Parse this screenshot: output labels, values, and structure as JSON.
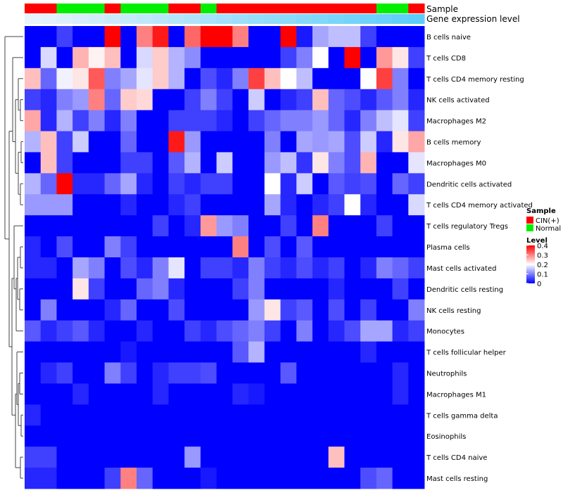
{
  "chart_data": {
    "type": "heatmap",
    "annotations": {
      "sample_label": "Sample",
      "expression_label": "Gene expression level",
      "sample_groups": [
        "CIN(+)",
        "Normal",
        "CIN(+)",
        "Normal",
        "CIN(+)",
        "Normal",
        "CIN(+)",
        "Normal",
        "CIN(+)"
      ],
      "sample_group_lengths": [
        2,
        3,
        1,
        3,
        2,
        1,
        10,
        2,
        1
      ],
      "sample_colors": {
        "CIN(+)": "#ff0000",
        "Normal": "#00ee00"
      }
    },
    "rows": [
      "B cells naive",
      "T cells CD8",
      "T cells CD4 memory resting",
      "NK cells activated",
      "Macrophages M2",
      "B cells memory",
      "Macrophages M0",
      "Dendritic cells activated",
      "T cells CD4 memory activated",
      "T cells regulatory  Tregs",
      "Plasma cells",
      "Mast cells activated",
      "Dendritic cells resting",
      "NK cells resting",
      "Monocytes",
      "T cells follicular helper",
      "Neutrophils",
      "Macrophages M1",
      "T cells gamma delta",
      "Eosinophils",
      "T cells CD4 naive",
      "Mast cells resting"
    ],
    "values": [
      [
        0.0,
        0.0,
        0.05,
        0.0,
        0.0,
        0.4,
        0.0,
        0.3,
        0.38,
        0.0,
        0.32,
        0.4,
        0.4,
        0.3,
        0.0,
        0.0,
        0.4,
        0.02,
        0.13,
        0.15,
        0.15,
        0.05,
        0.0,
        0.0,
        0.0
      ],
      [
        0.0,
        0.17,
        0.0,
        0.26,
        0.21,
        0.25,
        0.0,
        0.17,
        0.24,
        0.14,
        0.11,
        0.0,
        0.0,
        0.0,
        0.0,
        0.0,
        0.05,
        0.1,
        0.2,
        0.0,
        0.4,
        0.0,
        0.28,
        0.22,
        0.05
      ],
      [
        0.25,
        0.08,
        0.19,
        0.22,
        0.33,
        0.1,
        0.13,
        0.18,
        0.24,
        0.14,
        0.0,
        0.06,
        0.03,
        0.1,
        0.35,
        0.25,
        0.2,
        0.15,
        0.0,
        0.0,
        0.0,
        0.2,
        0.35,
        0.1,
        0.0
      ],
      [
        0.05,
        0.03,
        0.1,
        0.12,
        0.3,
        0.08,
        0.24,
        0.23,
        0.0,
        0.0,
        0.05,
        0.1,
        0.05,
        0.0,
        0.16,
        0.0,
        0.03,
        0.05,
        0.25,
        0.08,
        0.06,
        0.03,
        0.07,
        0.1,
        0.03
      ],
      [
        0.27,
        0.03,
        0.14,
        0.05,
        0.1,
        0.03,
        0.1,
        0.0,
        0.0,
        0.05,
        0.05,
        0.05,
        0.03,
        0.0,
        0.05,
        0.08,
        0.1,
        0.1,
        0.12,
        0.08,
        0.03,
        0.1,
        0.15,
        0.18,
        0.05
      ],
      [
        0.14,
        0.25,
        0.05,
        0.16,
        0.0,
        0.0,
        0.08,
        0.0,
        0.0,
        0.38,
        0.12,
        0.0,
        0.0,
        0.0,
        0.0,
        0.1,
        0.0,
        0.13,
        0.12,
        0.13,
        0.06,
        0.16,
        0.03,
        0.22,
        0.27
      ],
      [
        0.0,
        0.25,
        0.05,
        0.0,
        0.0,
        0.0,
        0.05,
        0.05,
        0.0,
        0.07,
        0.14,
        0.0,
        0.16,
        0.0,
        0.0,
        0.12,
        0.15,
        0.04,
        0.22,
        0.1,
        0.06,
        0.26,
        0.0,
        0.0,
        0.18
      ],
      [
        0.14,
        0.08,
        0.4,
        0.03,
        0.03,
        0.08,
        0.13,
        0.03,
        0.0,
        0.05,
        0.03,
        0.05,
        0.05,
        0.0,
        0.0,
        0.2,
        0.03,
        0.16,
        0.0,
        0.07,
        0.05,
        0.06,
        0.0,
        0.08,
        0.05
      ],
      [
        0.12,
        0.12,
        0.12,
        0.0,
        0.0,
        0.0,
        0.03,
        0.0,
        0.0,
        0.03,
        0.05,
        0.0,
        0.0,
        0.0,
        0.0,
        0.13,
        0.03,
        0.0,
        0.03,
        0.05,
        0.2,
        0.03,
        0.0,
        0.0,
        0.17
      ],
      [
        0.0,
        0.0,
        0.0,
        0.0,
        0.0,
        0.0,
        0.0,
        0.0,
        0.05,
        0.0,
        0.03,
        0.28,
        0.12,
        0.1,
        0.0,
        0.0,
        0.05,
        0.0,
        0.3,
        0.0,
        0.0,
        0.0,
        0.05,
        0.0,
        0.0
      ],
      [
        0.03,
        0.0,
        0.06,
        0.0,
        0.0,
        0.1,
        0.05,
        0.0,
        0.0,
        0.0,
        0.0,
        0.0,
        0.0,
        0.3,
        0.0,
        0.06,
        0.0,
        0.07,
        0.0,
        0.0,
        0.0,
        0.0,
        0.0,
        0.0,
        0.0
      ],
      [
        0.03,
        0.03,
        0.0,
        0.13,
        0.1,
        0.0,
        0.06,
        0.03,
        0.1,
        0.18,
        0.0,
        0.05,
        0.05,
        0.03,
        0.1,
        0.05,
        0.03,
        0.06,
        0.03,
        0.05,
        0.0,
        0.03,
        0.1,
        0.08,
        0.05
      ],
      [
        0.0,
        0.0,
        0.0,
        0.22,
        0.05,
        0.0,
        0.0,
        0.08,
        0.1,
        0.03,
        0.0,
        0.0,
        0.0,
        0.05,
        0.1,
        0.0,
        0.0,
        0.0,
        0.0,
        0.03,
        0.0,
        0.0,
        0.0,
        0.05,
        0.0
      ],
      [
        0.0,
        0.1,
        0.0,
        0.0,
        0.0,
        0.03,
        0.08,
        0.0,
        0.0,
        0.06,
        0.0,
        0.0,
        0.0,
        0.0,
        0.12,
        0.22,
        0.05,
        0.07,
        0.0,
        0.06,
        0.0,
        0.05,
        0.0,
        0.0,
        0.1
      ],
      [
        0.07,
        0.03,
        0.05,
        0.07,
        0.03,
        0.0,
        0.0,
        0.03,
        0.0,
        0.0,
        0.05,
        0.03,
        0.06,
        0.08,
        0.1,
        0.05,
        0.0,
        0.1,
        0.0,
        0.03,
        0.06,
        0.13,
        0.13,
        0.03,
        0.05
      ],
      [
        0.0,
        0.0,
        0.0,
        0.0,
        0.0,
        0.0,
        0.02,
        0.0,
        0.0,
        0.0,
        0.0,
        0.0,
        0.0,
        0.07,
        0.14,
        0.0,
        0.0,
        0.0,
        0.0,
        0.0,
        0.0,
        0.03,
        0.0,
        0.0,
        0.0
      ],
      [
        0.0,
        0.03,
        0.05,
        0.0,
        0.0,
        0.1,
        0.05,
        0.0,
        0.03,
        0.05,
        0.05,
        0.06,
        0.0,
        0.0,
        0.0,
        0.0,
        0.07,
        0.0,
        0.0,
        0.0,
        0.0,
        0.0,
        0.0,
        0.03,
        0.0
      ],
      [
        0.0,
        0.0,
        0.0,
        0.03,
        0.0,
        0.0,
        0.0,
        0.0,
        0.03,
        0.0,
        0.0,
        0.0,
        0.0,
        0.03,
        0.02,
        0.0,
        0.0,
        0.0,
        0.0,
        0.0,
        0.0,
        0.0,
        0.0,
        0.03,
        0.0
      ],
      [
        0.03,
        0.0,
        0.0,
        0.0,
        0.0,
        0.0,
        0.0,
        0.0,
        0.0,
        0.0,
        0.0,
        0.0,
        0.0,
        0.0,
        0.0,
        0.0,
        0.0,
        0.0,
        0.0,
        0.0,
        0.0,
        0.0,
        0.0,
        0.0,
        0.0
      ],
      [
        0.0,
        0.0,
        0.0,
        0.0,
        0.0,
        0.0,
        0.0,
        0.0,
        0.0,
        0.0,
        0.0,
        0.0,
        0.0,
        0.0,
        0.0,
        0.0,
        0.0,
        0.0,
        0.0,
        0.0,
        0.0,
        0.0,
        0.0,
        0.0,
        0.0
      ],
      [
        0.05,
        0.05,
        0.0,
        0.0,
        0.0,
        0.0,
        0.0,
        0.0,
        0.0,
        0.0,
        0.12,
        0.0,
        0.0,
        0.0,
        0.0,
        0.0,
        0.0,
        0.0,
        0.0,
        0.25,
        0.0,
        0.0,
        0.0,
        0.0,
        0.0
      ],
      [
        0.03,
        0.03,
        0.0,
        0.0,
        0.0,
        0.05,
        0.3,
        0.08,
        0.0,
        0.0,
        0.0,
        0.02,
        0.0,
        0.0,
        0.0,
        0.0,
        0.0,
        0.0,
        0.0,
        0.0,
        0.0,
        0.06,
        0.08,
        0.0,
        0.0
      ]
    ],
    "color_scale": {
      "min": 0,
      "max": 0.4,
      "low": "#0000ff",
      "mid": "#ffffff",
      "high": "#ff0000"
    },
    "legend": {
      "position": "right",
      "sample_title": "Sample",
      "sample_entries": [
        "CIN(+)",
        "Normal"
      ],
      "level_title": "Level",
      "level_ticks": [
        "0.4",
        "0.3",
        "0.2",
        "0.1",
        "0"
      ]
    },
    "dendrogram": "rows"
  }
}
